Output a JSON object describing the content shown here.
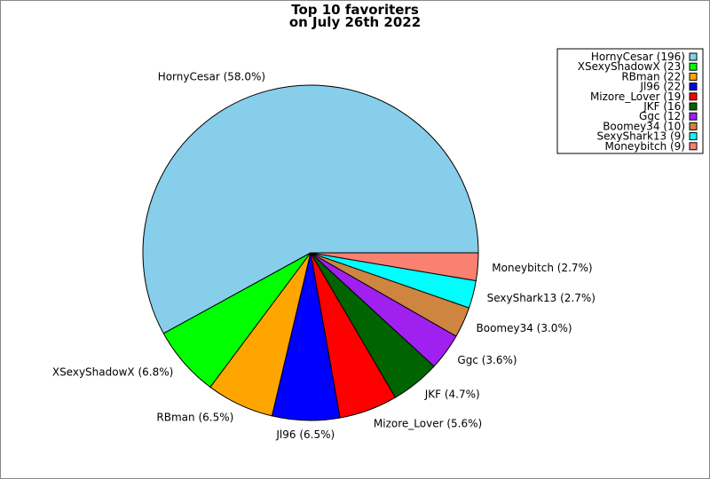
{
  "chart_data": {
    "type": "pie",
    "title_lines": [
      "Top 10 favoriters",
      "on July 26th 2022"
    ],
    "slices": [
      {
        "name": "HornyCesar",
        "value": 196,
        "percent_label": "HornyCesar (58.0%)",
        "legend_label": "HornyCesar (196)",
        "color": "#87ceeb"
      },
      {
        "name": "XSexyShadowX",
        "value": 23,
        "percent_label": "XSexyShadowX (6.8%)",
        "legend_label": "XSexyShadowX (23)",
        "color": "#00ff00"
      },
      {
        "name": "RBman",
        "value": 22,
        "percent_label": "RBman (6.5%)",
        "legend_label": "RBman (22)",
        "color": "#ffa500"
      },
      {
        "name": "Jl96",
        "value": 22,
        "percent_label": "Jl96 (6.5%)",
        "legend_label": "Jl96 (22)",
        "color": "#0000ff"
      },
      {
        "name": "Mizore_Lover",
        "value": 19,
        "percent_label": "Mizore_Lover (5.6%)",
        "legend_label": "Mizore_Lover (19)",
        "color": "#ff0000"
      },
      {
        "name": "JKF",
        "value": 16,
        "percent_label": "JKF (4.7%)",
        "legend_label": "JKF (16)",
        "color": "#006400"
      },
      {
        "name": "Ggc",
        "value": 12,
        "percent_label": "Ggc (3.6%)",
        "legend_label": "Ggc (12)",
        "color": "#a020f0"
      },
      {
        "name": "Boomey34",
        "value": 10,
        "percent_label": "Boomey34 (3.0%)",
        "legend_label": "Boomey34 (10)",
        "color": "#cd853f"
      },
      {
        "name": "SexyShark13",
        "value": 9,
        "percent_label": "SexyShark13 (2.7%)",
        "legend_label": "SexyShark13 (9)",
        "color": "#00ffff"
      },
      {
        "name": "Moneybitch",
        "value": 9,
        "percent_label": "Moneybitch (2.7%)",
        "legend_label": "Moneybitch (9)",
        "color": "#fa8072"
      }
    ],
    "legend_position": "top-right",
    "start": "3 o'clock, counter-clockwise"
  }
}
